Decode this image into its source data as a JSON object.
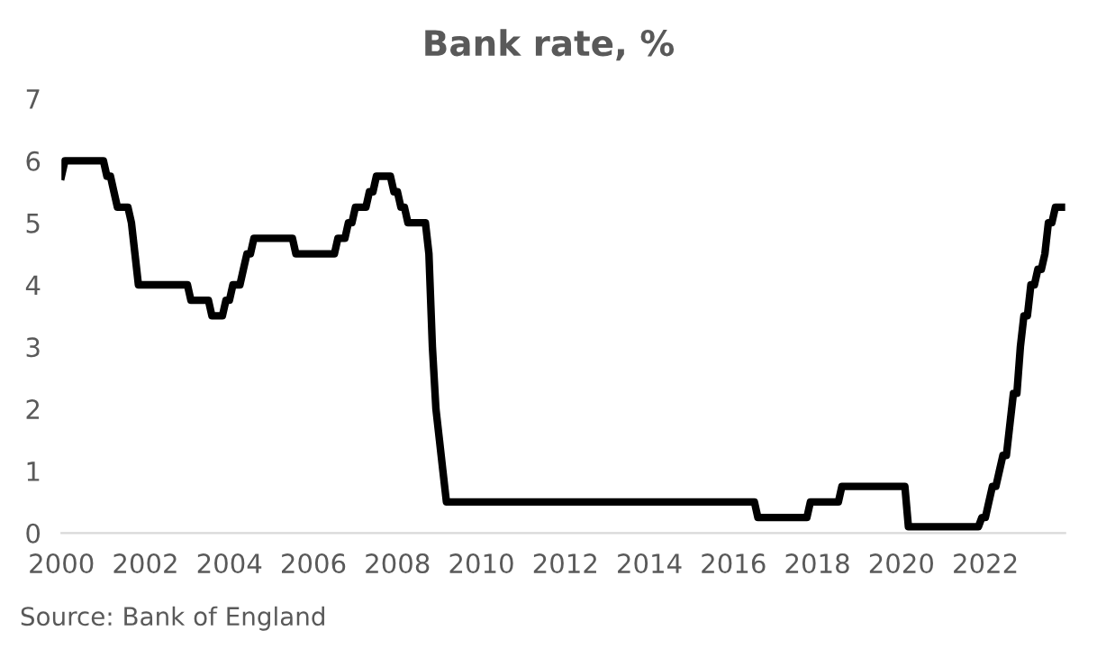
{
  "chart_data": {
    "type": "line",
    "title": "Bank rate, %",
    "x": [
      2000.0,
      2000.083,
      2001.0,
      2001.083,
      2001.167,
      2001.25,
      2001.333,
      2001.583,
      2001.667,
      2001.75,
      2001.833,
      2003.0,
      2003.083,
      2003.5,
      2003.583,
      2003.833,
      2003.917,
      2004.0,
      2004.083,
      2004.25,
      2004.333,
      2004.417,
      2004.5,
      2004.583,
      2005.5,
      2005.583,
      2006.5,
      2006.583,
      2006.75,
      2006.833,
      2006.917,
      2007.0,
      2007.25,
      2007.333,
      2007.417,
      2007.5,
      2007.833,
      2007.917,
      2008.0,
      2008.083,
      2008.167,
      2008.25,
      2008.667,
      2008.75,
      2008.833,
      2008.917,
      2009.0,
      2009.083,
      2009.167,
      2016.5,
      2016.583,
      2017.75,
      2017.833,
      2018.5,
      2018.583,
      2020.083,
      2020.167,
      2021.833,
      2021.917,
      2022.0,
      2022.083,
      2022.167,
      2022.25,
      2022.333,
      2022.417,
      2022.5,
      2022.583,
      2022.667,
      2022.75,
      2022.833,
      2022.917,
      2023.0,
      2023.083,
      2023.167,
      2023.25,
      2023.333,
      2023.417,
      2023.5,
      2023.583,
      2023.667,
      2023.833
    ],
    "series": [
      {
        "color": "#000000",
        "values": [
          5.75,
          6.0,
          6.0,
          5.75,
          5.75,
          5.5,
          5.25,
          5.25,
          5.0,
          4.5,
          4.0,
          4.0,
          3.75,
          3.75,
          3.5,
          3.5,
          3.75,
          3.75,
          4.0,
          4.0,
          4.25,
          4.5,
          4.5,
          4.75,
          4.75,
          4.5,
          4.5,
          4.75,
          4.75,
          5.0,
          5.0,
          5.25,
          5.25,
          5.5,
          5.5,
          5.75,
          5.75,
          5.5,
          5.5,
          5.25,
          5.25,
          5.0,
          5.0,
          4.5,
          3.0,
          2.0,
          1.5,
          1.0,
          0.5,
          0.5,
          0.25,
          0.25,
          0.5,
          0.5,
          0.75,
          0.75,
          0.1,
          0.1,
          0.25,
          0.25,
          0.5,
          0.75,
          0.75,
          1.0,
          1.25,
          1.25,
          1.75,
          2.25,
          2.25,
          3.0,
          3.5,
          3.5,
          4.0,
          4.0,
          4.25,
          4.25,
          4.5,
          5.0,
          5.0,
          5.25,
          5.25
        ]
      }
    ],
    "xlim": [
      2000,
      2023.9
    ],
    "xticks": [
      2000,
      2002,
      2004,
      2006,
      2008,
      2010,
      2012,
      2014,
      2016,
      2018,
      2020,
      2022
    ],
    "ylim": [
      0,
      7
    ],
    "yticks": [
      0,
      1,
      2,
      3,
      4,
      5,
      6,
      7
    ],
    "grid": false,
    "marker": "none",
    "line_style": "solid",
    "annotations": [
      "Source: Bank of England"
    ]
  }
}
